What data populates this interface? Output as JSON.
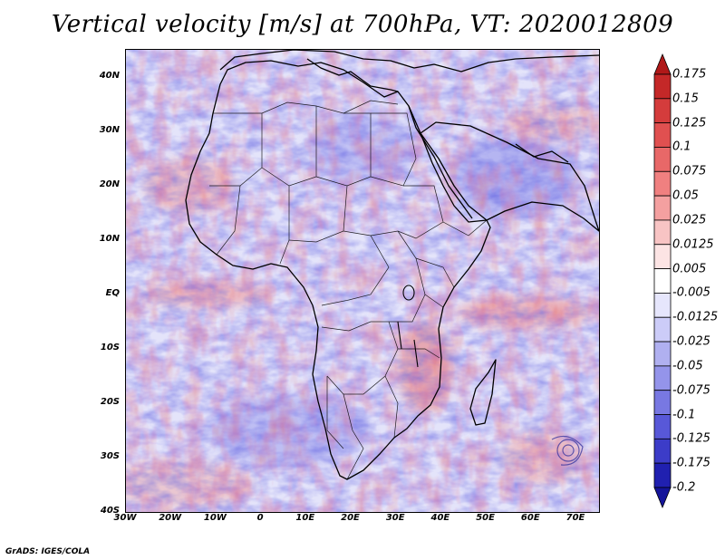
{
  "title": "Vertical velocity [m/s] at 700hPa, VT: 2020012809",
  "credit": "GrADS: IGES/COLA",
  "map": {
    "variable": "Vertical velocity",
    "units": "m/s",
    "level": "700hPa",
    "valid_time": "2020012809",
    "lon_range": [
      -30,
      75
    ],
    "lat_range": [
      -40,
      45
    ],
    "lat_labels": [
      "40N",
      "30N",
      "20N",
      "10N",
      "EQ",
      "10S",
      "20S",
      "30S",
      "40S"
    ],
    "lon_labels": [
      "30W",
      "20W",
      "10W",
      "0",
      "10E",
      "20E",
      "30E",
      "40E",
      "50E",
      "60E",
      "70E"
    ]
  },
  "colorbar": {
    "labels": [
      "0.175",
      "0.15",
      "0.125",
      "0.1",
      "0.075",
      "0.05",
      "0.025",
      "0.0125",
      "0.005",
      "-0.005",
      "-0.0125",
      "-0.025",
      "-0.05",
      "-0.075",
      "-0.1",
      "-0.125",
      "-0.175",
      "-0.2"
    ],
    "colors": [
      "#b01818",
      "#c42828",
      "#d43c3c",
      "#e05050",
      "#e86868",
      "#f08080",
      "#f4a0a0",
      "#f8c4c4",
      "#fce4e4",
      "#ffffff",
      "#e6e6fc",
      "#ccccf8",
      "#b0b0f0",
      "#9494ea",
      "#7878e2",
      "#5858d8",
      "#3c3cc8",
      "#2020b0",
      "#14149a"
    ]
  }
}
